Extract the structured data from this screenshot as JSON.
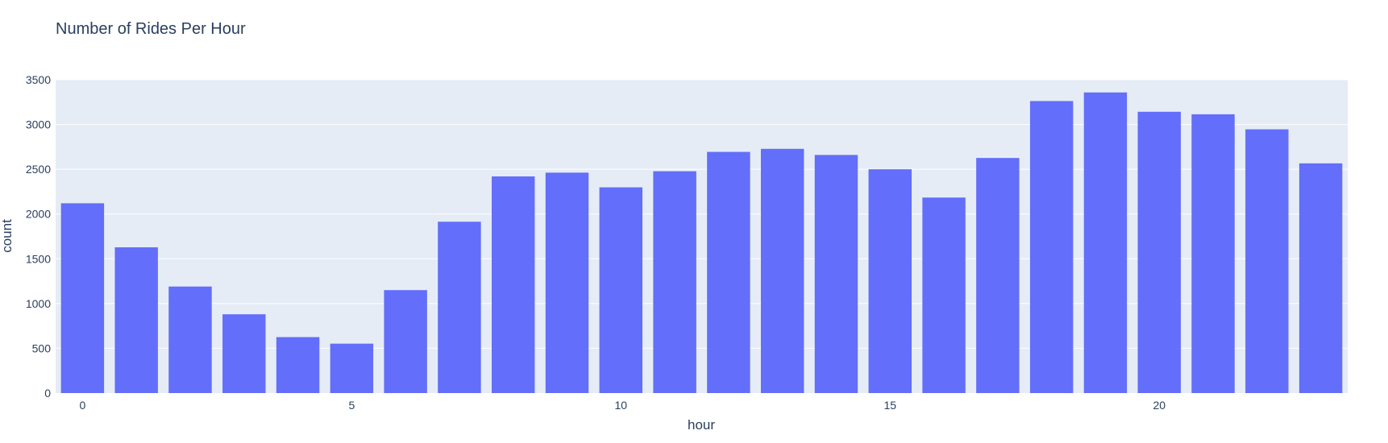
{
  "chart_data": {
    "type": "bar",
    "title": "Number of Rides Per Hour",
    "xlabel": "hour",
    "ylabel": "count",
    "x": [
      0,
      1,
      2,
      3,
      4,
      5,
      6,
      7,
      8,
      9,
      10,
      11,
      12,
      13,
      14,
      15,
      16,
      17,
      18,
      19,
      20,
      21,
      22,
      23
    ],
    "values": [
      2120,
      1628,
      1190,
      880,
      625,
      552,
      1150,
      1914,
      2420,
      2462,
      2298,
      2478,
      2694,
      2728,
      2660,
      2500,
      2184,
      2626,
      3262,
      3358,
      3142,
      3114,
      2946,
      2566
    ],
    "xlim": [
      -0.5,
      23.5
    ],
    "ylim": [
      0,
      3500
    ],
    "xticks": [
      0,
      5,
      10,
      15,
      20
    ],
    "yticks": [
      0,
      500,
      1000,
      1500,
      2000,
      2500,
      3000,
      3500
    ],
    "grid": true,
    "colors": {
      "bar": "#636efa",
      "plot_bg": "#e5ecf6",
      "grid": "#ffffff",
      "text": "#2a3f5f"
    }
  }
}
